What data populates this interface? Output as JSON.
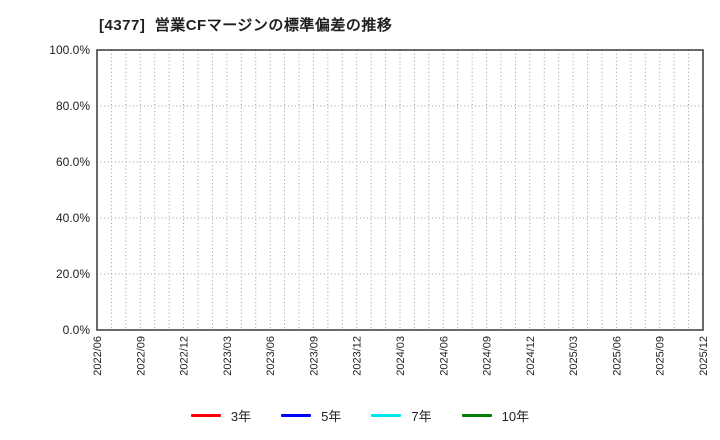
{
  "page": {
    "background": "#ffffff"
  },
  "chart_data": {
    "type": "line",
    "title": "[4377]  営業CFマージンの標準偏差の推移",
    "xlabel": "",
    "ylabel": "",
    "ylim": [
      0,
      100
    ],
    "y_ticks": [
      0,
      20,
      40,
      60,
      80,
      100
    ],
    "y_tick_labels": [
      "0.0%",
      "20.0%",
      "40.0%",
      "60.0%",
      "80.0%",
      "100.0%"
    ],
    "x_tick_labels": [
      "2022/06",
      "2022/09",
      "2022/12",
      "2023/03",
      "2023/06",
      "2023/09",
      "2023/12",
      "2024/03",
      "2024/06",
      "2024/09",
      "2024/12",
      "2025/03",
      "2025/06",
      "2025/09",
      "2025/12"
    ],
    "x_minor_gridlines_per_label": 3,
    "grid": "dotted",
    "legend_position": "bottom",
    "series": [
      {
        "name": "3年",
        "color": "#ff0000",
        "values": []
      },
      {
        "name": "5年",
        "color": "#0000ff",
        "values": []
      },
      {
        "name": "7年",
        "color": "#00e5ee",
        "values": []
      },
      {
        "name": "10年",
        "color": "#008000",
        "values": []
      }
    ]
  }
}
